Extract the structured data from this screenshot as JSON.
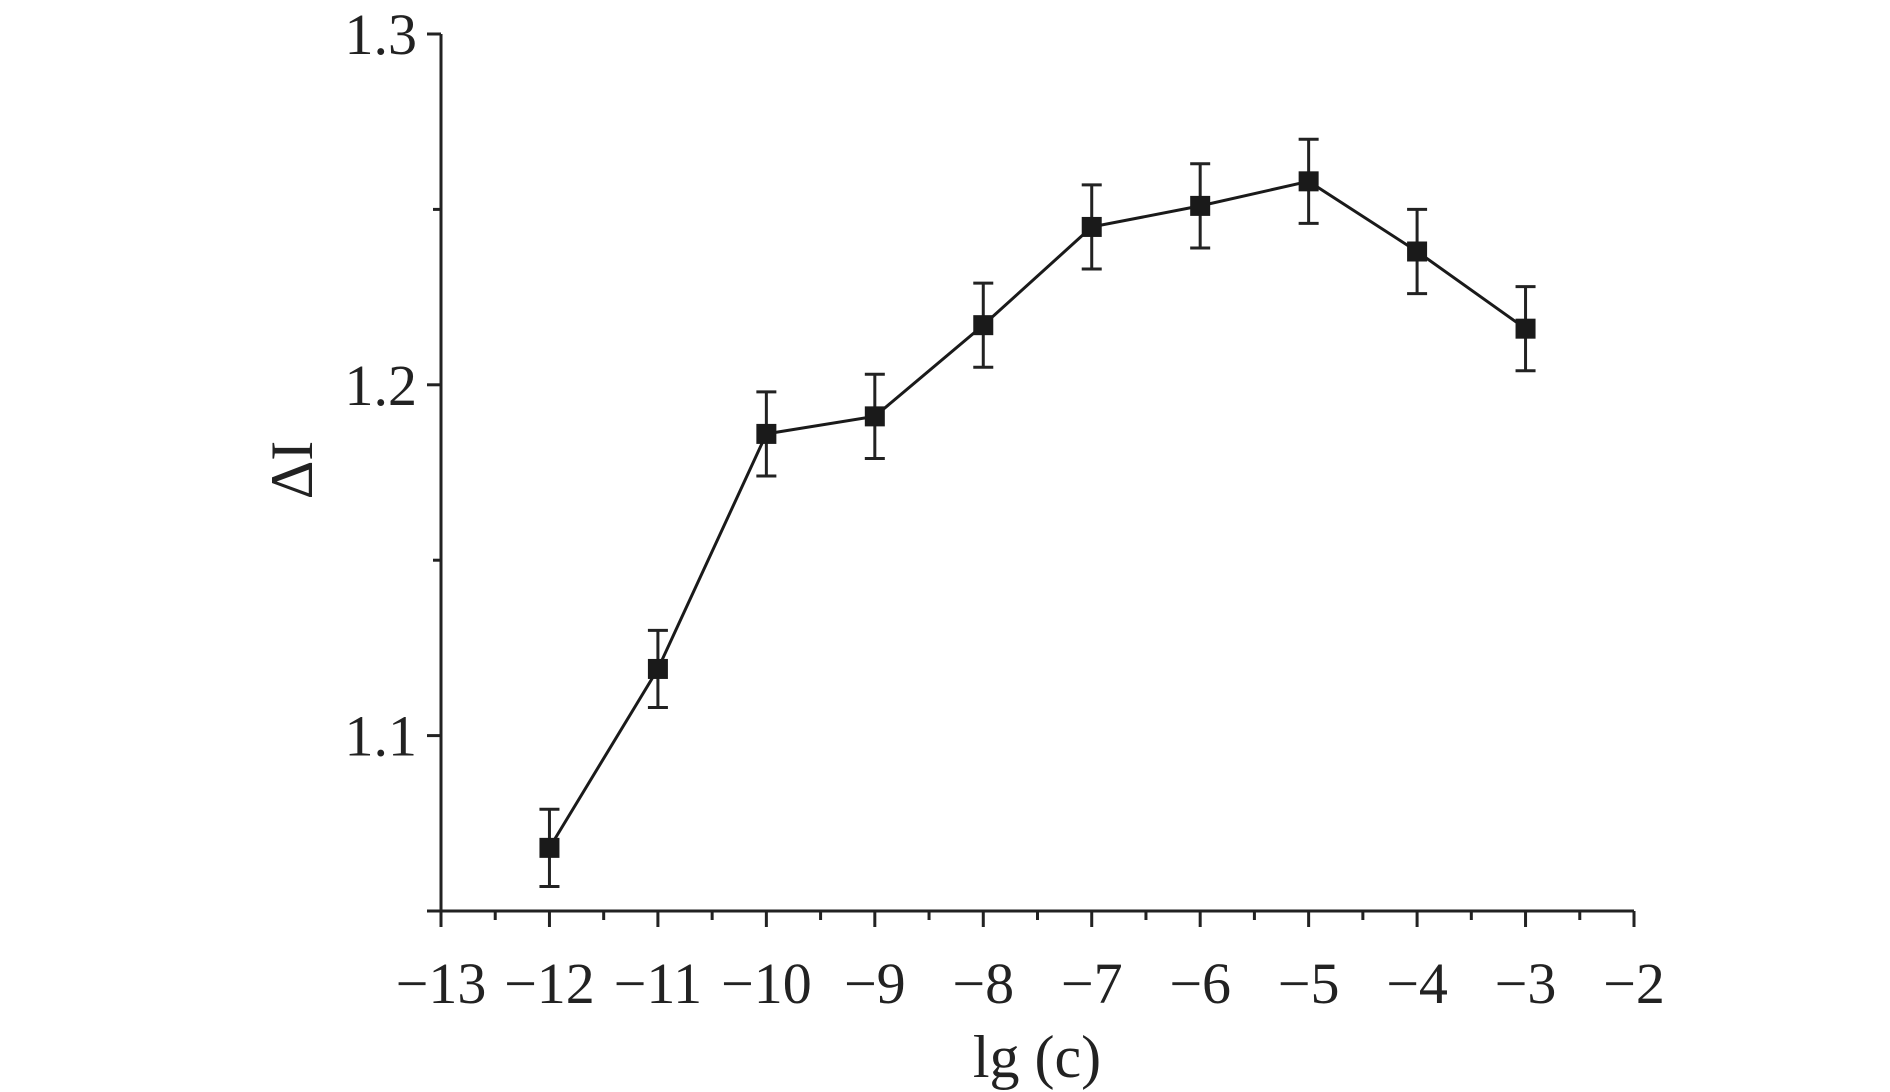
{
  "chart_data": {
    "type": "line",
    "title": "",
    "xlabel": "lg (c)",
    "ylabel": "ΔI",
    "xlim": [
      -13,
      -2
    ],
    "ylim": [
      1.05,
      1.3
    ],
    "xticks": [
      -13,
      -12,
      -11,
      -10,
      -9,
      -8,
      -7,
      -6,
      -5,
      -4,
      -3,
      -2
    ],
    "xtick_labels": [
      "−13",
      "−12",
      "−11",
      "−10",
      "−9",
      "−8",
      "−7",
      "−6",
      "−5",
      "−4",
      "−3",
      "−2"
    ],
    "yticks": [
      1.1,
      1.2,
      1.3
    ],
    "ytick_labels": [
      "1.1",
      "1.2",
      "1.3"
    ],
    "grid": false,
    "legend": "none",
    "series": [
      {
        "name": "ΔI",
        "marker": "square",
        "color": "#1a1a1a",
        "x": [
          -12,
          -11,
          -10,
          -9,
          -8,
          -7,
          -6,
          -5,
          -4,
          -3
        ],
        "y": [
          1.068,
          1.119,
          1.186,
          1.191,
          1.217,
          1.245,
          1.251,
          1.258,
          1.238,
          1.216
        ],
        "error": [
          0.011,
          0.011,
          0.012,
          0.012,
          0.012,
          0.012,
          0.012,
          0.012,
          0.012,
          0.012
        ]
      }
    ]
  }
}
